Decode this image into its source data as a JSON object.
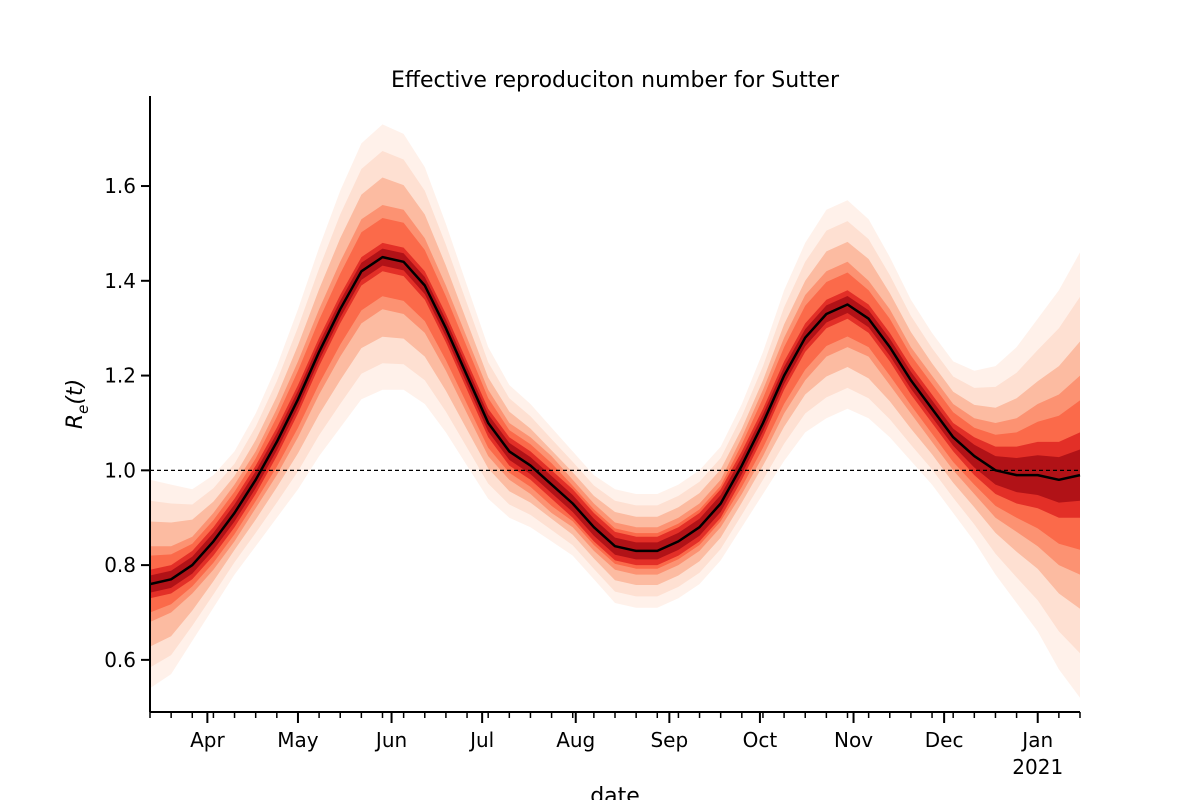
{
  "chart_data": {
    "type": "area",
    "title": "Effective reproduciton number for Sutter",
    "xlabel": "date",
    "ylabel": "R_e(t)",
    "ylabel_parts": {
      "base": "R",
      "subscript": "e",
      "suffix": "(t)"
    },
    "xlim": [
      "2020-03-13",
      "2021-01-15"
    ],
    "ylim": [
      0.49,
      1.79
    ],
    "y_ticks": [
      "0.6",
      "0.8",
      "1.0",
      "1.2",
      "1.4",
      "1.6"
    ],
    "y_tick_values": [
      0.6,
      0.8,
      1.0,
      1.2,
      1.4,
      1.6
    ],
    "x_ticks": [
      {
        "date": "2020-04-01",
        "label": "Apr",
        "sublabel": ""
      },
      {
        "date": "2020-05-01",
        "label": "May",
        "sublabel": ""
      },
      {
        "date": "2020-06-01",
        "label": "Jun",
        "sublabel": ""
      },
      {
        "date": "2020-07-01",
        "label": "Jul",
        "sublabel": ""
      },
      {
        "date": "2020-08-01",
        "label": "Aug",
        "sublabel": ""
      },
      {
        "date": "2020-09-01",
        "label": "Sep",
        "sublabel": ""
      },
      {
        "date": "2020-10-01",
        "label": "Oct",
        "sublabel": ""
      },
      {
        "date": "2020-11-01",
        "label": "Nov",
        "sublabel": ""
      },
      {
        "date": "2020-12-01",
        "label": "Dec",
        "sublabel": ""
      },
      {
        "date": "2021-01-01",
        "label": "Jan",
        "sublabel": "2021"
      }
    ],
    "reference_line": {
      "y": 1.0,
      "style": "dashed"
    },
    "grid": false,
    "colors": {
      "median": "#000000",
      "band_outer": "#fee0d2",
      "band_mid": "#fb6a4a",
      "band_inner": "#b11217"
    },
    "median": {
      "x": [
        "2020-03-13",
        "2020-03-20",
        "2020-03-27",
        "2020-04-03",
        "2020-04-10",
        "2020-04-17",
        "2020-04-24",
        "2020-05-01",
        "2020-05-08",
        "2020-05-15",
        "2020-05-22",
        "2020-05-29",
        "2020-06-05",
        "2020-06-12",
        "2020-06-19",
        "2020-06-26",
        "2020-07-03",
        "2020-07-10",
        "2020-07-17",
        "2020-07-24",
        "2020-07-31",
        "2020-08-07",
        "2020-08-14",
        "2020-08-21",
        "2020-08-28",
        "2020-09-04",
        "2020-09-11",
        "2020-09-18",
        "2020-09-25",
        "2020-10-02",
        "2020-10-09",
        "2020-10-16",
        "2020-10-23",
        "2020-10-30",
        "2020-11-06",
        "2020-11-13",
        "2020-11-20",
        "2020-11-27",
        "2020-12-04",
        "2020-12-11",
        "2020-12-18",
        "2020-12-25",
        "2021-01-01",
        "2021-01-08",
        "2021-01-15"
      ],
      "y": [
        0.76,
        0.77,
        0.8,
        0.85,
        0.91,
        0.98,
        1.06,
        1.15,
        1.25,
        1.34,
        1.42,
        1.45,
        1.44,
        1.39,
        1.3,
        1.2,
        1.1,
        1.04,
        1.01,
        0.97,
        0.93,
        0.88,
        0.84,
        0.83,
        0.83,
        0.85,
        0.88,
        0.93,
        1.01,
        1.1,
        1.2,
        1.28,
        1.33,
        1.35,
        1.32,
        1.26,
        1.19,
        1.13,
        1.07,
        1.03,
        1.0,
        0.99,
        0.99,
        0.98,
        0.99
      ]
    },
    "band_halfwidth": {
      "inner": [
        0.03,
        0.03,
        0.03,
        0.03,
        0.03,
        0.03,
        0.03,
        0.03,
        0.03,
        0.03,
        0.03,
        0.03,
        0.03,
        0.03,
        0.03,
        0.03,
        0.03,
        0.03,
        0.03,
        0.03,
        0.03,
        0.03,
        0.03,
        0.03,
        0.03,
        0.03,
        0.03,
        0.03,
        0.03,
        0.03,
        0.03,
        0.03,
        0.03,
        0.03,
        0.03,
        0.03,
        0.03,
        0.03,
        0.03,
        0.04,
        0.05,
        0.06,
        0.07,
        0.08,
        0.09
      ],
      "mid": [
        0.08,
        0.07,
        0.06,
        0.06,
        0.06,
        0.06,
        0.07,
        0.08,
        0.09,
        0.1,
        0.11,
        0.11,
        0.11,
        0.1,
        0.09,
        0.08,
        0.07,
        0.06,
        0.06,
        0.06,
        0.05,
        0.05,
        0.05,
        0.05,
        0.05,
        0.05,
        0.05,
        0.05,
        0.06,
        0.07,
        0.08,
        0.09,
        0.09,
        0.09,
        0.08,
        0.08,
        0.07,
        0.07,
        0.07,
        0.08,
        0.1,
        0.12,
        0.15,
        0.18,
        0.21
      ],
      "outer": [
        0.22,
        0.2,
        0.16,
        0.14,
        0.13,
        0.14,
        0.16,
        0.19,
        0.22,
        0.25,
        0.27,
        0.28,
        0.27,
        0.25,
        0.22,
        0.19,
        0.16,
        0.14,
        0.13,
        0.12,
        0.11,
        0.11,
        0.12,
        0.12,
        0.12,
        0.12,
        0.12,
        0.12,
        0.13,
        0.15,
        0.18,
        0.2,
        0.22,
        0.22,
        0.21,
        0.19,
        0.17,
        0.16,
        0.16,
        0.18,
        0.22,
        0.27,
        0.33,
        0.4,
        0.47
      ]
    }
  }
}
